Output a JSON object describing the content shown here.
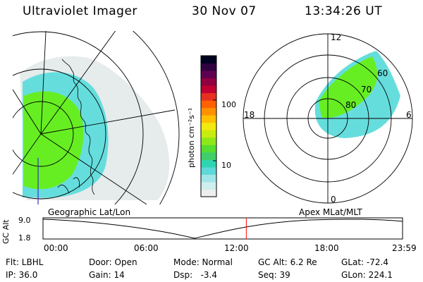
{
  "header": {
    "instrument": "Ultraviolet Imager",
    "date": "30 Nov 07",
    "time": "13:34:26 UT"
  },
  "colorbar": {
    "unit_label": "photon cm⁻²s⁻¹",
    "tick_labels": [
      "100",
      "10"
    ],
    "colors": [
      "#eeeeee",
      "#cfeeee",
      "#a0e6e8",
      "#5ed8d8",
      "#2fd4b0",
      "#3ecf6a",
      "#55dd30",
      "#8ee818",
      "#c8ec10",
      "#f0ea10",
      "#ffc000",
      "#ff9000",
      "#ff6000",
      "#e83020",
      "#c00030",
      "#900040",
      "#600050",
      "#300040",
      "#000020"
    ]
  },
  "geo_map": {
    "caption": "Geographic Lat/Lon",
    "footprint_colors": {
      "low": "#dde4e4",
      "mid": "#66dddd",
      "high": "#66ee22"
    }
  },
  "polar_plot": {
    "caption": "Apex MLat/MLT",
    "mlt_labels": {
      "top": "12",
      "left": "18",
      "right": "6",
      "bottom": "0"
    },
    "lat_labels": [
      "60",
      "70",
      "80"
    ]
  },
  "gc_alt_plot": {
    "ylabel": "GC Alt",
    "y_ticks": [
      "9.0",
      "1.8"
    ],
    "x_ticks": [
      "00:00",
      "06:00",
      "12:00",
      "18:00",
      "23:59"
    ],
    "x_range_hours": [
      0,
      24
    ],
    "marker_hours": 13.57,
    "marker_color": "#ff0000"
  },
  "info": {
    "flt": "Flt: LBHL",
    "ip": "IP: 36.0",
    "door": "Door: Open",
    "gain": "Gain: 14",
    "mode": "Mode: Normal",
    "dsp": "Dsp:   -3.4",
    "gcalt": "GC Alt: 6.2 Re",
    "seq": "Seq: 39",
    "glat": "GLat: -72.4",
    "glon": "GLon: 224.1"
  }
}
